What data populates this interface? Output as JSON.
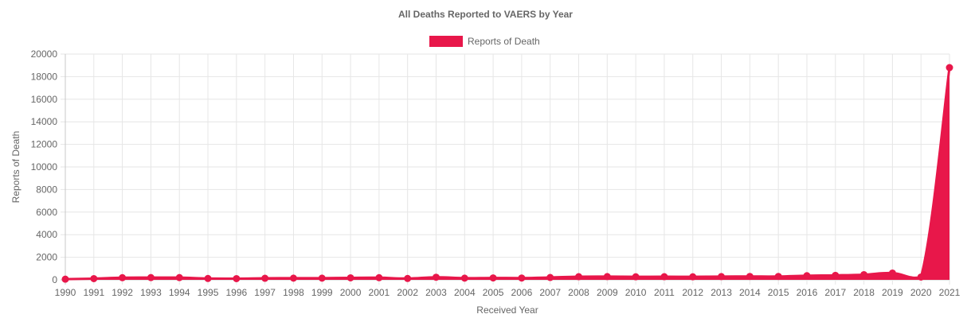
{
  "chart_data": {
    "type": "area",
    "title": "All Deaths Reported to VAERS by Year",
    "xlabel": "Received Year",
    "ylabel": "Reports of Death",
    "ylim": [
      0,
      20000
    ],
    "y_ticks": [
      "0",
      "2000",
      "4000",
      "6000",
      "8000",
      "10000",
      "12000",
      "14000",
      "16000",
      "18000",
      "20000"
    ],
    "categories": [
      "1990",
      "1991",
      "1992",
      "1993",
      "1994",
      "1995",
      "1996",
      "1997",
      "1998",
      "1999",
      "2000",
      "2001",
      "2002",
      "2003",
      "2004",
      "2005",
      "2006",
      "2007",
      "2008",
      "2009",
      "2010",
      "2011",
      "2012",
      "2013",
      "2014",
      "2015",
      "2016",
      "2017",
      "2018",
      "2019",
      "2020",
      "2021"
    ],
    "series": [
      {
        "name": "Reports of Death",
        "color": "#e8174a",
        "values": [
          60,
          110,
          190,
          200,
          200,
          120,
          110,
          140,
          150,
          150,
          180,
          190,
          120,
          230,
          150,
          170,
          160,
          210,
          280,
          290,
          270,
          280,
          270,
          290,
          300,
          300,
          370,
          400,
          460,
          600,
          250,
          18800
        ]
      }
    ],
    "legend": "top-center",
    "grid": true
  }
}
